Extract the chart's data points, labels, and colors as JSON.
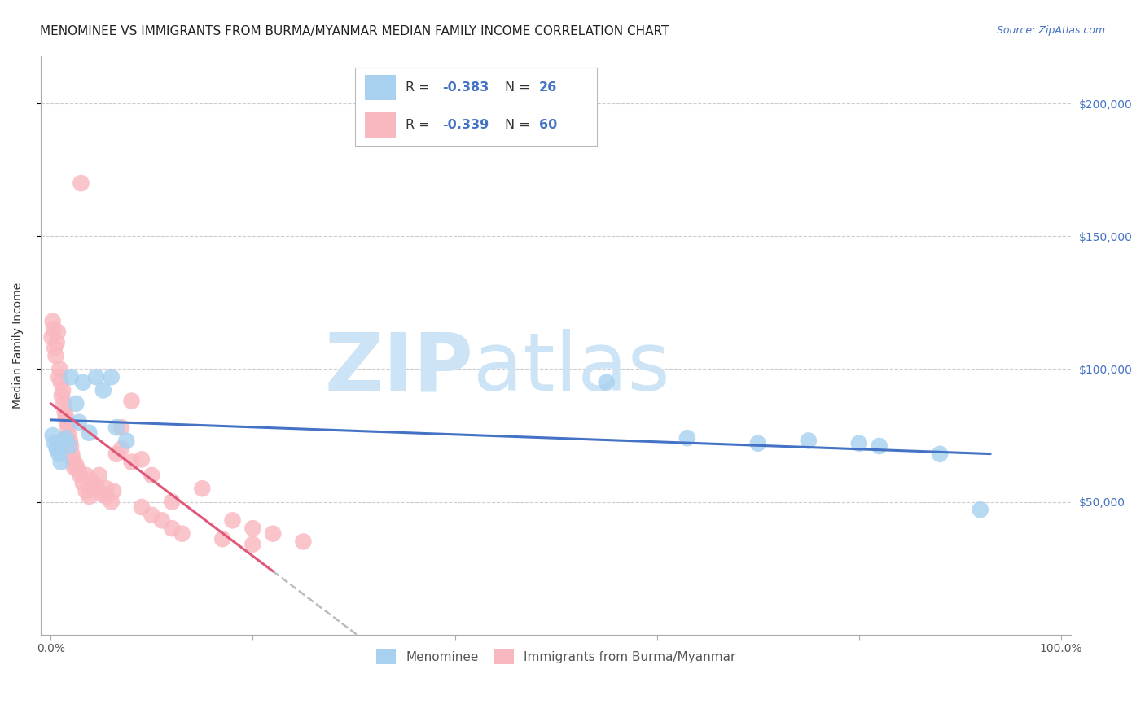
{
  "title": "MENOMINEE VS IMMIGRANTS FROM BURMA/MYANMAR MEDIAN FAMILY INCOME CORRELATION CHART",
  "source": "Source: ZipAtlas.com",
  "ylabel": "Median Family Income",
  "y_ticks": [
    50000,
    100000,
    150000,
    200000
  ],
  "y_tick_labels": [
    "$50,000",
    "$100,000",
    "$150,000",
    "$200,000"
  ],
  "ylim": [
    0,
    218000
  ],
  "xlim": [
    -0.01,
    1.01
  ],
  "legend_label1": "Menominee",
  "legend_label2": "Immigrants from Burma/Myanmar",
  "blue_scatter_color": "#a8d1f0",
  "pink_scatter_color": "#f9b8c0",
  "blue_line_color": "#4472c4",
  "pink_line_color": "#e05878",
  "watermark_zip": "ZIP",
  "watermark_atlas": "atlas",
  "watermark_color": "#cce4f5",
  "blue_points_x": [
    0.002,
    0.004,
    0.006,
    0.008,
    0.01,
    0.012,
    0.015,
    0.018,
    0.02,
    0.025,
    0.028,
    0.032,
    0.038,
    0.045,
    0.052,
    0.06,
    0.065,
    0.075,
    0.55,
    0.63,
    0.7,
    0.75,
    0.8,
    0.82,
    0.88,
    0.92
  ],
  "blue_points_y": [
    75000,
    72000,
    70000,
    68000,
    65000,
    73000,
    74000,
    71000,
    97000,
    87000,
    80000,
    95000,
    76000,
    97000,
    92000,
    97000,
    78000,
    73000,
    95000,
    74000,
    72000,
    73000,
    72000,
    71000,
    68000,
    47000
  ],
  "pink_points_x": [
    0.001,
    0.002,
    0.003,
    0.004,
    0.005,
    0.006,
    0.007,
    0.008,
    0.009,
    0.01,
    0.011,
    0.012,
    0.013,
    0.014,
    0.015,
    0.016,
    0.017,
    0.018,
    0.019,
    0.02,
    0.021,
    0.022,
    0.023,
    0.025,
    0.027,
    0.029,
    0.032,
    0.035,
    0.038,
    0.042,
    0.048,
    0.055,
    0.062,
    0.07,
    0.08,
    0.09,
    0.1,
    0.12,
    0.15,
    0.18,
    0.2,
    0.22,
    0.25,
    0.03,
    0.035,
    0.04,
    0.045,
    0.05,
    0.055,
    0.06,
    0.065,
    0.07,
    0.08,
    0.09,
    0.1,
    0.11,
    0.12,
    0.13,
    0.17,
    0.2
  ],
  "pink_points_y": [
    112000,
    118000,
    115000,
    108000,
    105000,
    110000,
    114000,
    97000,
    100000,
    95000,
    90000,
    92000,
    87000,
    84000,
    82000,
    80000,
    78000,
    75000,
    73000,
    71000,
    68000,
    66000,
    63000,
    64000,
    62000,
    60000,
    57000,
    54000,
    52000,
    55000,
    60000,
    55000,
    54000,
    78000,
    88000,
    66000,
    60000,
    50000,
    55000,
    43000,
    40000,
    38000,
    35000,
    170000,
    60000,
    58000,
    56000,
    53000,
    52000,
    50000,
    68000,
    70000,
    65000,
    48000,
    45000,
    43000,
    40000,
    38000,
    36000,
    34000
  ],
  "background_color": "#ffffff",
  "grid_color": "#cccccc",
  "title_fontsize": 11,
  "axis_label_fontsize": 10,
  "tick_fontsize": 10,
  "source_fontsize": 9
}
